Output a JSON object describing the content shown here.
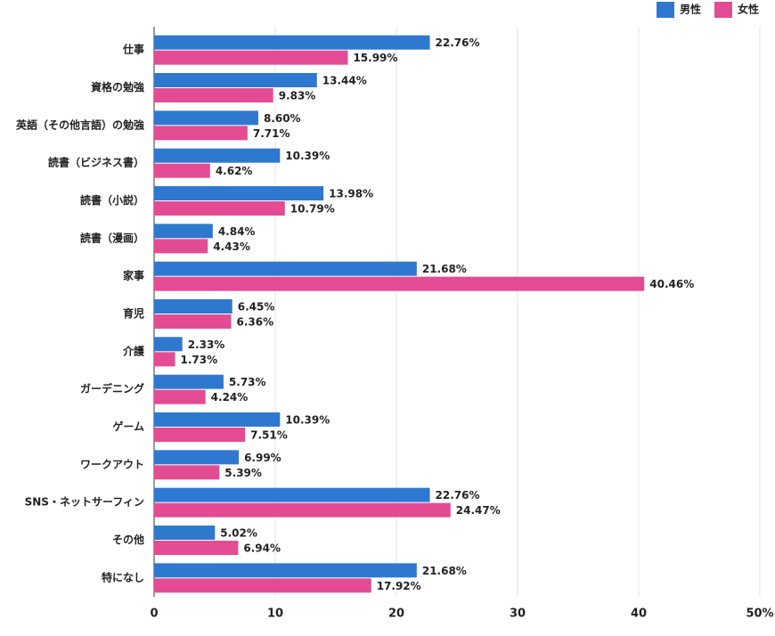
{
  "chart_data": {
    "type": "hbar",
    "categories": [
      "仕事",
      "資格の勉強",
      "英語（その他言語）の勉強",
      "読書（ビジネス書）",
      "読書（小説）",
      "読書（漫画）",
      "家事",
      "育児",
      "介護",
      "ガーデニング",
      "ゲーム",
      "ワークアウト",
      "SNS・ネットサーフィン",
      "その他",
      "特になし"
    ],
    "series": [
      {
        "name": "男性",
        "color": "#2f78cf",
        "values": [
          22.76,
          13.44,
          8.6,
          10.39,
          13.98,
          4.84,
          21.68,
          6.45,
          2.33,
          5.73,
          10.39,
          6.99,
          22.76,
          5.02,
          21.68
        ],
        "value_labels": [
          "22.76%",
          "13.44%",
          "8.60%",
          "10.39%",
          "13.98%",
          "4.84%",
          "21.68%",
          "6.45%",
          "2.33%",
          "5.73%",
          "10.39%",
          "6.99%",
          "22.76%",
          "5.02%",
          "21.68%"
        ]
      },
      {
        "name": "女性",
        "color": "#e34c92",
        "values": [
          15.99,
          9.83,
          7.71,
          4.62,
          10.79,
          4.43,
          40.46,
          6.36,
          1.73,
          4.24,
          7.51,
          5.39,
          24.47,
          6.94,
          17.92
        ],
        "value_labels": [
          "15.99%",
          "9.83%",
          "7.71%",
          "4.62%",
          "10.79%",
          "4.43%",
          "40.46%",
          "6.36%",
          "1.73%",
          "4.24%",
          "7.51%",
          "5.39%",
          "24.47%",
          "6.94%",
          "17.92%"
        ]
      }
    ],
    "xlim": [
      0,
      50
    ],
    "xticks": [
      0,
      10,
      20,
      30,
      40,
      {
        "value": 50,
        "label": "50%"
      }
    ],
    "grid": true,
    "legend": "top-right"
  }
}
